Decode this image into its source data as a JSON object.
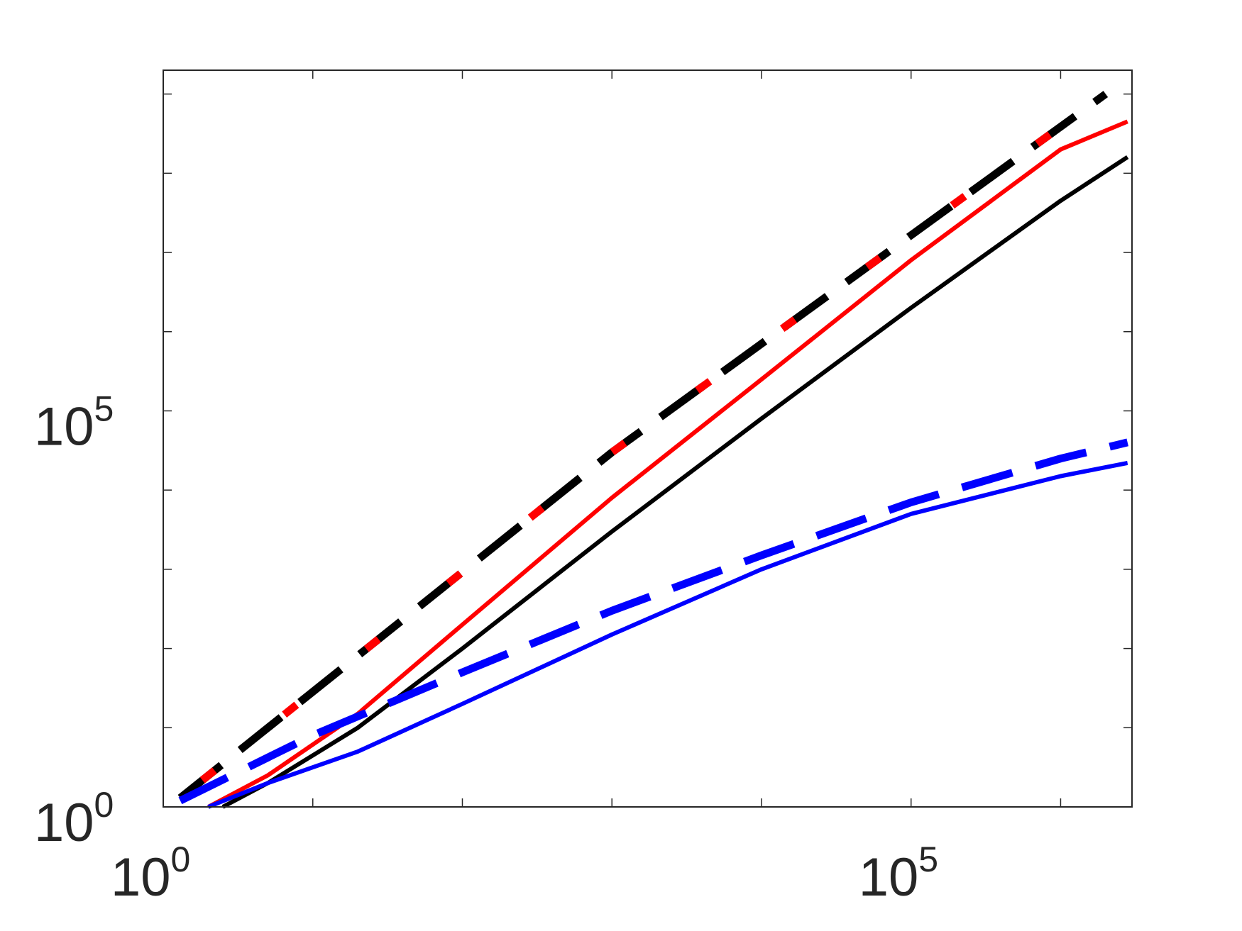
{
  "chart_data": {
    "type": "line",
    "title": "",
    "xlabel": "",
    "ylabel": "",
    "x_scale": "log",
    "y_scale": "log",
    "xlim": [
      1,
      3000000
    ],
    "ylim": [
      1,
      2000000000
    ],
    "grid": false,
    "x_tick_labels": [
      {
        "value": 1,
        "base": "10",
        "exp": "0"
      },
      {
        "value": 100000,
        "base": "10",
        "exp": "5"
      }
    ],
    "y_tick_labels": [
      {
        "value": 1,
        "base": "10",
        "exp": "0"
      },
      {
        "value": 100000,
        "base": "10",
        "exp": "5"
      }
    ],
    "series": [
      {
        "color": "#000000",
        "style": "dashed",
        "x": [
          1.3,
          1000,
          2000000
        ],
        "y": [
          1.3,
          30000,
          1000000000
        ]
      },
      {
        "color": "#ff0000",
        "style": "dashed",
        "x": [
          1.3,
          1000,
          2000000
        ],
        "y": [
          1.3,
          30000,
          1000000000
        ]
      },
      {
        "color": "#ff0000",
        "style": "solid",
        "x": [
          2,
          5,
          20,
          100,
          1000,
          10000,
          100000,
          1000000,
          2800000
        ],
        "y": [
          1,
          2.5,
          15,
          200,
          8000,
          250000,
          8000000,
          200000000,
          450000000
        ]
      },
      {
        "color": "#000000",
        "style": "solid",
        "x": [
          2.5,
          5,
          20,
          100,
          1000,
          10000,
          100000,
          1000000,
          2800000
        ],
        "y": [
          1,
          2,
          10,
          100,
          3000,
          80000,
          2000000,
          45000000,
          160000000
        ]
      },
      {
        "color": "#0000ff",
        "style": "dashed",
        "x": [
          1.3,
          10,
          100,
          1000,
          10000,
          100000,
          1000000,
          2800000
        ],
        "y": [
          1.2,
          8,
          50,
          300,
          1500,
          7000,
          25000,
          40000
        ]
      },
      {
        "color": "#0000ff",
        "style": "solid",
        "x": [
          2,
          5,
          20,
          100,
          1000,
          10000,
          100000,
          1000000,
          2800000
        ],
        "y": [
          1,
          2,
          5,
          20,
          150,
          1000,
          5000,
          15000,
          22000
        ]
      }
    ]
  }
}
